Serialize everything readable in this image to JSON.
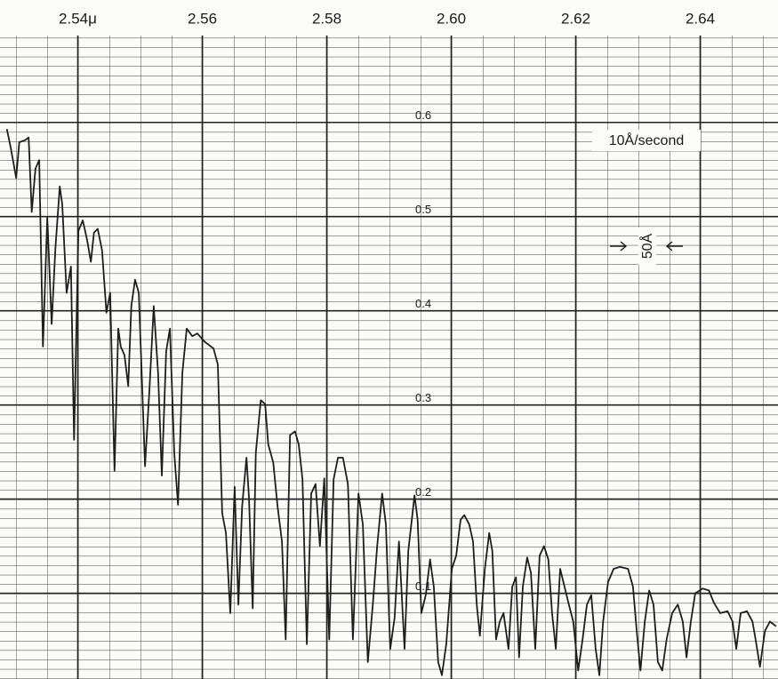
{
  "chart_data": {
    "type": "line",
    "color": "#1e1e1e",
    "grid": true,
    "xlim": [
      2.5275,
      2.6525
    ],
    "ylim": [
      0.009,
      0.73
    ],
    "xticks": [
      {
        "value": 2.54,
        "label": "2.54μ"
      },
      2.56,
      2.58,
      {
        "value": 2.6,
        "label": "2.60"
      },
      2.62,
      2.64
    ],
    "yticks": [
      0.1,
      0.2,
      0.3,
      0.4,
      0.5,
      0.6
    ],
    "annotations": [
      "10Å/second",
      "50Å"
    ],
    "x": [
      2.5286,
      2.5292,
      2.5301,
      2.5306,
      2.5315,
      2.5321,
      2.5326,
      2.5332,
      2.5338,
      2.5344,
      2.5351,
      2.5358,
      2.5364,
      2.5371,
      2.5375,
      2.5382,
      2.5389,
      2.5394,
      2.5401,
      2.5408,
      2.5415,
      2.5421,
      2.5426,
      2.5432,
      2.5439,
      2.5446,
      2.5452,
      2.5459,
      2.5465,
      2.5469,
      2.5475,
      2.5481,
      2.5486,
      2.5492,
      2.5498,
      2.5508,
      2.5515,
      2.5522,
      2.5529,
      2.5535,
      2.5542,
      2.5548,
      2.5555,
      2.5561,
      2.5568,
      2.5575,
      2.5584,
      2.5592,
      2.5604,
      2.5618,
      2.5625,
      2.5632,
      2.5638,
      2.5645,
      2.5652,
      2.5658,
      2.5664,
      2.5671,
      2.5675,
      2.5681,
      2.5686,
      2.5694,
      2.5701,
      2.5706,
      2.5714,
      2.5721,
      2.5728,
      2.5734,
      2.5741,
      2.5749,
      2.5755,
      2.5761,
      2.5768,
      2.5775,
      2.5782,
      2.5789,
      2.5796,
      2.5804,
      2.5811,
      2.5818,
      2.5826,
      2.5834,
      2.5842,
      2.5851,
      2.5858,
      2.5866,
      2.5874,
      2.5881,
      2.5889,
      2.5895,
      2.5902,
      2.5909,
      2.5916,
      2.5925,
      2.5931,
      2.5941,
      2.5946,
      2.5952,
      2.5959,
      2.5966,
      2.5972,
      2.5979,
      2.5985,
      2.5992,
      2.6001,
      2.6008,
      2.6015,
      2.6021,
      2.6029,
      2.6035,
      2.6041,
      2.6046,
      2.6054,
      2.6061,
      2.6066,
      2.6072,
      2.6078,
      2.6084,
      2.6092,
      2.6098,
      2.6104,
      2.6109,
      2.6115,
      2.6122,
      2.6128,
      2.6135,
      2.6142,
      2.6149,
      2.6156,
      2.6162,
      2.6168,
      2.6175,
      2.6182,
      2.6189,
      2.6196,
      2.6204,
      2.6211,
      2.6218,
      2.6225,
      2.6232,
      2.6238,
      2.6244,
      2.6252,
      2.6261,
      2.6271,
      2.6284,
      2.6292,
      2.6298,
      2.6304,
      2.6311,
      2.6318,
      2.6325,
      2.6332,
      2.6339,
      2.6346,
      2.6355,
      2.6364,
      2.6372,
      2.6378,
      2.6385,
      2.6392,
      2.6404,
      2.6414,
      2.6422,
      2.6432,
      2.6444,
      2.6452,
      2.6458,
      2.6465,
      2.6475,
      2.6484,
      2.6489,
      2.6496,
      2.6504,
      2.6512,
      2.6522
    ],
    "values": [
      0.593,
      0.574,
      0.541,
      0.579,
      0.581,
      0.584,
      0.505,
      0.551,
      0.56,
      0.362,
      0.499,
      0.386,
      0.466,
      0.532,
      0.513,
      0.419,
      0.447,
      0.263,
      0.485,
      0.496,
      0.475,
      0.452,
      0.483,
      0.487,
      0.464,
      0.398,
      0.419,
      0.23,
      0.381,
      0.362,
      0.353,
      0.32,
      0.405,
      0.433,
      0.419,
      0.235,
      0.315,
      0.405,
      0.334,
      0.225,
      0.357,
      0.381,
      0.249,
      0.194,
      0.334,
      0.381,
      0.373,
      0.376,
      0.367,
      0.36,
      0.343,
      0.185,
      0.164,
      0.079,
      0.213,
      0.088,
      0.192,
      0.244,
      0.202,
      0.084,
      0.249,
      0.305,
      0.301,
      0.258,
      0.239,
      0.192,
      0.155,
      0.051,
      0.268,
      0.272,
      0.258,
      0.221,
      0.046,
      0.206,
      0.216,
      0.15,
      0.222,
      0.051,
      0.221,
      0.244,
      0.244,
      0.216,
      0.051,
      0.206,
      0.173,
      0.027,
      0.088,
      0.15,
      0.206,
      0.173,
      0.041,
      0.074,
      0.155,
      0.041,
      0.145,
      0.204,
      0.178,
      0.079,
      0.098,
      0.136,
      0.107,
      0.027,
      0.013,
      0.046,
      0.126,
      0.14,
      0.178,
      0.183,
      0.173,
      0.155,
      0.088,
      0.055,
      0.126,
      0.164,
      0.145,
      0.051,
      0.07,
      0.079,
      0.041,
      0.107,
      0.117,
      0.032,
      0.107,
      0.138,
      0.122,
      0.041,
      0.14,
      0.15,
      0.136,
      0.079,
      0.041,
      0.126,
      0.107,
      0.088,
      0.07,
      0.018,
      0.051,
      0.088,
      0.098,
      0.041,
      0.013,
      0.07,
      0.112,
      0.126,
      0.128,
      0.126,
      0.107,
      0.06,
      0.018,
      0.07,
      0.103,
      0.088,
      0.027,
      0.018,
      0.051,
      0.079,
      0.088,
      0.07,
      0.032,
      0.07,
      0.1,
      0.105,
      0.103,
      0.09,
      0.079,
      0.081,
      0.07,
      0.041,
      0.079,
      0.081,
      0.07,
      0.051,
      0.022,
      0.06,
      0.07,
      0.065
    ]
  }
}
